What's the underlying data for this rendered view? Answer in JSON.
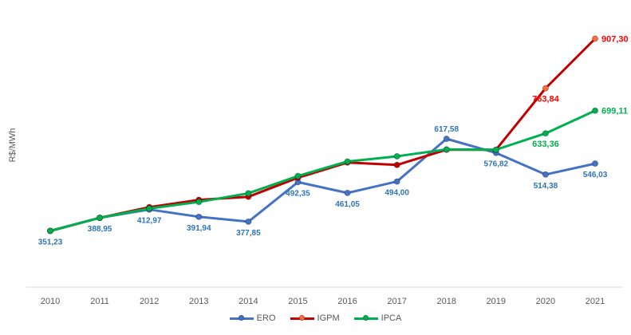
{
  "chart_data": {
    "type": "line",
    "ylabel": "R$/MWh",
    "x": [
      "2010",
      "2011",
      "2012",
      "2013",
      "2014",
      "2015",
      "2016",
      "2017",
      "2018",
      "2019",
      "2020",
      "2021"
    ],
    "ylim": [
      200,
      950
    ],
    "grid": false,
    "legend_position": "bottom-center",
    "series": [
      {
        "name": "ERO",
        "color": "#4472C4",
        "label_color": "#2E75B6",
        "values": [
          351.23,
          388.95,
          412.97,
          391.94,
          377.85,
          492.35,
          461.05,
          494.0,
          617.58,
          576.82,
          514.38,
          546.03
        ],
        "labels": [
          "351,23",
          "388,95",
          "412,97",
          "391,94",
          "377,85",
          "492,35",
          "461,05",
          "494,00",
          "617,58",
          "576,82",
          "514,38",
          "546,03"
        ]
      },
      {
        "name": "IGPM",
        "color": "#C00000",
        "label_color": "#FF0000",
        "values": [
          351.23,
          388.95,
          420.0,
          441.0,
          450.0,
          505.0,
          549.0,
          542.0,
          586.0,
          586.0,
          763.84,
          907.3
        ],
        "labels": [
          "",
          "",
          "",
          "",
          "",
          "",
          "",
          "",
          "",
          "",
          "763,84",
          "907,30"
        ]
      },
      {
        "name": "IPCA",
        "color": "#00B050",
        "label_color": "#00B050",
        "values": [
          351.23,
          388.95,
          416.0,
          435.0,
          460.0,
          510.0,
          552.0,
          567.0,
          587.0,
          586.0,
          633.36,
          699.11
        ],
        "labels": [
          "",
          "",
          "",
          "",
          "",
          "",
          "",
          "",
          "",
          "",
          "633,36",
          "699,11"
        ]
      }
    ]
  }
}
